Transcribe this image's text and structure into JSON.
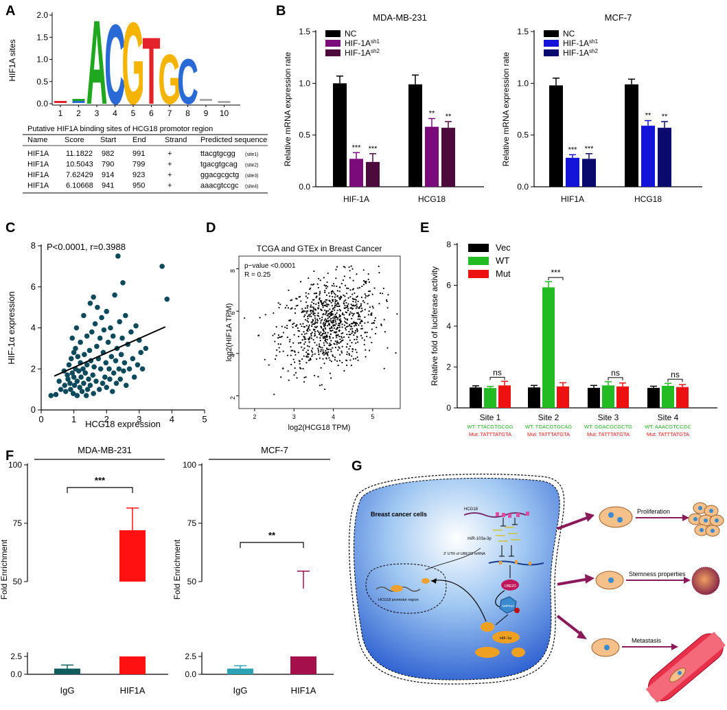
{
  "panel_labels": [
    "A",
    "B",
    "C",
    "D",
    "E",
    "F",
    "G"
  ],
  "chart_data": [
    {
      "id": "A_logo",
      "type": "sequence-logo",
      "ylabel": "HIF1A sites",
      "yticks": [
        "0.0",
        "0.5",
        "1.0",
        "1.5",
        "2.0"
      ],
      "ylim": [
        0,
        2.0
      ],
      "positions": [
        "1",
        "2",
        "3",
        "4",
        "5",
        "6",
        "7",
        "8",
        "9",
        "10"
      ],
      "letters": [
        {
          "pos": 3,
          "char": "A",
          "bits": 1.95
        },
        {
          "pos": 4,
          "char": "C",
          "bits": 1.85
        },
        {
          "pos": 5,
          "char": "G",
          "bits": 1.9
        },
        {
          "pos": 6,
          "char": "T",
          "bits": 1.55
        },
        {
          "pos": 7,
          "char": "G",
          "bits": 1.15
        },
        {
          "pos": 8,
          "char": "C",
          "bits": 1.05
        }
      ]
    },
    {
      "id": "A_table",
      "type": "table",
      "title": "Putative HIF1A binding sites of HCG18 promotor region",
      "columns": [
        "Name",
        "Score",
        "Start",
        "End",
        "Strand",
        "Predicted sequence"
      ],
      "rows": [
        [
          "HIF1A",
          "11.1822",
          "982",
          "991",
          "+",
          "ttacgtgcgg",
          "(site1)"
        ],
        [
          "HIF1A",
          "10.5043",
          "790",
          "799",
          "+",
          "tgacgtgcag",
          "(site2)"
        ],
        [
          "HIF1A",
          "7.62429",
          "914",
          "923",
          "+",
          "ggacgcgctg",
          "(site3)"
        ],
        [
          "HIF1A",
          "6.10668",
          "941",
          "950",
          "+",
          "aaacgtccgc",
          "(site4)"
        ]
      ]
    },
    {
      "id": "B1",
      "type": "bar",
      "title": "MDA-MB-231",
      "ylabel": "Relative mRNA expression rate",
      "ylim": [
        0,
        1.5
      ],
      "yticks": [
        "0.0",
        "0.5",
        "1.0",
        "1.5"
      ],
      "categories": [
        "HIF-1A",
        "HCG18"
      ],
      "series": [
        {
          "name": "NC",
          "color": "#000000",
          "values": [
            1.0,
            0.99
          ],
          "errors": [
            0.07,
            0.09
          ]
        },
        {
          "name": "HIF-1A",
          "sup": "sh1",
          "color": "#7b0a7b",
          "values": [
            0.27,
            0.58
          ],
          "errors": [
            0.06,
            0.08
          ]
        },
        {
          "name": "HIF-1A",
          "sup": "sh2",
          "color": "#4d0a3d",
          "values": [
            0.24,
            0.57
          ],
          "errors": [
            0.08,
            0.06
          ]
        }
      ],
      "significance": [
        [
          "",
          "***",
          "***"
        ],
        [
          "",
          "**",
          "**"
        ]
      ]
    },
    {
      "id": "B2",
      "type": "bar",
      "title": "MCF-7",
      "ylabel": "Relative mRNA expression rate",
      "ylim": [
        0,
        1.5
      ],
      "yticks": [
        "0.0",
        "0.5",
        "1.0",
        "1.5"
      ],
      "categories": [
        "HIF1A",
        "HCG18"
      ],
      "series": [
        {
          "name": "NC",
          "color": "#000000",
          "values": [
            0.98,
            0.99
          ],
          "errors": [
            0.07,
            0.05
          ]
        },
        {
          "name": "HIF-1A",
          "sup": "sh1",
          "color": "#1414d8",
          "values": [
            0.28,
            0.59
          ],
          "errors": [
            0.03,
            0.05
          ]
        },
        {
          "name": "HIF-1A",
          "sup": "sh2",
          "color": "#0a0a6e",
          "values": [
            0.27,
            0.57
          ],
          "errors": [
            0.05,
            0.06
          ]
        }
      ],
      "significance": [
        [
          "",
          "***",
          "***"
        ],
        [
          "",
          "**",
          "**"
        ]
      ]
    },
    {
      "id": "C",
      "type": "scatter",
      "annotation": "P<0.0001, r=0.3988",
      "xlabel": "HCG18 expression",
      "ylabel": "HIF-1α expression",
      "xlim": [
        0,
        5
      ],
      "ylim": [
        0,
        8
      ],
      "xticks": [
        "0",
        "1",
        "2",
        "3",
        "4",
        "5"
      ],
      "yticks": [
        "0",
        "2",
        "4",
        "6",
        "8"
      ],
      "color": "#0d4a5c",
      "fit": [
        [
          0.4,
          1.65
        ],
        [
          3.8,
          4.05
        ]
      ],
      "points": [
        [
          0.3,
          0.7
        ],
        [
          0.45,
          0.75
        ],
        [
          0.55,
          1.4
        ],
        [
          0.6,
          1.0
        ],
        [
          0.7,
          1.9
        ],
        [
          0.72,
          1.2
        ],
        [
          0.75,
          0.9
        ],
        [
          0.8,
          1.7
        ],
        [
          0.82,
          1.5
        ],
        [
          0.85,
          2.2
        ],
        [
          0.88,
          1.3
        ],
        [
          0.9,
          1.0
        ],
        [
          0.92,
          2.5
        ],
        [
          0.95,
          1.8
        ],
        [
          0.95,
          3.5
        ],
        [
          0.98,
          0.8
        ],
        [
          1.0,
          2.8
        ],
        [
          1.0,
          1.6
        ],
        [
          1.02,
          1.2
        ],
        [
          1.05,
          3.0
        ],
        [
          1.05,
          2.0
        ],
        [
          1.08,
          4.0
        ],
        [
          1.1,
          1.4
        ],
        [
          1.1,
          0.7
        ],
        [
          1.12,
          2.6
        ],
        [
          1.15,
          1.9
        ],
        [
          1.18,
          1.1
        ],
        [
          1.2,
          3.3
        ],
        [
          1.2,
          2.3
        ],
        [
          1.22,
          1.6
        ],
        [
          1.25,
          0.9
        ],
        [
          1.28,
          2.0
        ],
        [
          1.3,
          4.6
        ],
        [
          1.3,
          1.3
        ],
        [
          1.32,
          2.7
        ],
        [
          1.35,
          1.8
        ],
        [
          1.38,
          0.7
        ],
        [
          1.4,
          3.6
        ],
        [
          1.4,
          2.2
        ],
        [
          1.42,
          1.0
        ],
        [
          1.45,
          1.5
        ],
        [
          1.48,
          2.9
        ],
        [
          1.5,
          5.2
        ],
        [
          1.5,
          1.2
        ],
        [
          1.52,
          2.4
        ],
        [
          1.55,
          3.8
        ],
        [
          1.58,
          1.7
        ],
        [
          1.6,
          5.5
        ],
        [
          1.6,
          0.8
        ],
        [
          1.62,
          2.1
        ],
        [
          1.65,
          4.2
        ],
        [
          1.68,
          1.4
        ],
        [
          1.7,
          3.1
        ],
        [
          1.72,
          5.0
        ],
        [
          1.75,
          2.5
        ],
        [
          1.78,
          1.0
        ],
        [
          1.8,
          3.5
        ],
        [
          1.82,
          2.0
        ],
        [
          1.85,
          4.5
        ],
        [
          1.88,
          1.3
        ],
        [
          1.9,
          2.8
        ],
        [
          1.92,
          3.9
        ],
        [
          1.95,
          1.6
        ],
        [
          1.98,
          2.3
        ],
        [
          2.0,
          4.8
        ],
        [
          2.0,
          1.1
        ],
        [
          2.05,
          3.3
        ],
        [
          2.08,
          2.0
        ],
        [
          2.1,
          1.5
        ],
        [
          2.12,
          4.0
        ],
        [
          2.15,
          2.6
        ],
        [
          2.18,
          0.9
        ],
        [
          2.2,
          3.6
        ],
        [
          2.22,
          1.8
        ],
        [
          2.25,
          5.6
        ],
        [
          2.28,
          2.4
        ],
        [
          2.3,
          1.3
        ],
        [
          2.32,
          3.0
        ],
        [
          2.35,
          7.5
        ],
        [
          2.38,
          2.0
        ],
        [
          2.4,
          4.3
        ],
        [
          2.42,
          1.5
        ],
        [
          2.45,
          2.7
        ],
        [
          2.48,
          3.5
        ],
        [
          2.5,
          6.2
        ],
        [
          2.52,
          1.9
        ],
        [
          2.55,
          2.3
        ],
        [
          2.58,
          4.6
        ],
        [
          2.6,
          1.2
        ],
        [
          2.65,
          3.2
        ],
        [
          2.7,
          2.0
        ],
        [
          2.75,
          3.8
        ],
        [
          2.8,
          2.5
        ],
        [
          2.85,
          1.6
        ],
        [
          2.9,
          4.1
        ],
        [
          2.95,
          2.2
        ],
        [
          3.0,
          3.4
        ],
        [
          3.05,
          2.8
        ],
        [
          3.1,
          2.0
        ],
        [
          3.2,
          3.0
        ],
        [
          3.7,
          7.0
        ],
        [
          3.85,
          5.4
        ]
      ]
    },
    {
      "id": "D",
      "type": "scatter",
      "title": "TCGA and GTEx in Breast Cancer",
      "annotation": [
        "p−value <0.0001",
        "R = 0.25"
      ],
      "xlabel": "log2(HCG18 TPM)",
      "ylabel": "log2(HIF1A TPM)",
      "xlim": [
        1.6,
        5.7
      ],
      "ylim": [
        1.4,
        8.6
      ],
      "xticks": [
        "2",
        "3",
        "4",
        "5"
      ],
      "yticks": [
        "2",
        "4",
        "6",
        "8"
      ],
      "n_points": 900,
      "x_mean": 3.9,
      "x_sd": 0.62,
      "y_mean": 5.4,
      "y_sd": 1.1,
      "correlation": 0.25
    },
    {
      "id": "E",
      "type": "bar",
      "ylabel": "Relative fold of luciferase activity",
      "ylim": [
        0,
        8
      ],
      "yticks": [
        "0",
        "2",
        "4",
        "6",
        "8"
      ],
      "categories": [
        "Site 1",
        "Site 2",
        "Site 3",
        "Site 4"
      ],
      "wt_labels": [
        "WT: TTACGTGCGG",
        "WT: TGACGTGCAG",
        "WT: GGACGCGCTG",
        "WT: AAACGTCCGC"
      ],
      "mut_labels": [
        "Mut: TATTTATGTA",
        "Mut: TATTTATGTA",
        "Mut: TATTTATGTA",
        "Mut: TATTTATGTA"
      ],
      "series": [
        {
          "name": "Vec",
          "color": "#000000",
          "values": [
            1.0,
            1.0,
            0.98,
            0.98
          ],
          "errors": [
            0.08,
            0.1,
            0.12,
            0.08
          ]
        },
        {
          "name": "WT",
          "color": "#22bb22",
          "values": [
            0.97,
            5.9,
            1.1,
            1.08
          ],
          "errors": [
            0.08,
            0.28,
            0.18,
            0.12
          ]
        },
        {
          "name": "Mut",
          "color": "#ee1111",
          "values": [
            1.1,
            1.05,
            1.05,
            1.02
          ],
          "errors": [
            0.2,
            0.18,
            0.17,
            0.12
          ]
        }
      ],
      "significance": [
        "ns",
        "***",
        "ns",
        "ns"
      ]
    },
    {
      "id": "F1",
      "type": "bar",
      "title": "MDA-MB-231",
      "ylabel": "Fold Enrichment",
      "broken_axis": true,
      "yticks_low": [
        "0.0",
        "2.5"
      ],
      "yticks_high": [
        "50",
        "75",
        "100"
      ],
      "ylim_low": [
        0,
        2.5
      ],
      "ylim_high": [
        50,
        100
      ],
      "categories": [
        "IgG",
        "HIF1A"
      ],
      "values": [
        0.8,
        72
      ],
      "errors": [
        0.5,
        9.5
      ],
      "colors": [
        "#0f5d5d",
        "#ff1111"
      ],
      "significance": "***"
    },
    {
      "id": "F2",
      "type": "bar",
      "title": "MCF-7",
      "ylabel": "Fold Enrichment",
      "broken_axis": true,
      "yticks_low": [
        "0.0",
        "2.5"
      ],
      "yticks_high": [
        "50",
        "75",
        "100"
      ],
      "ylim_low": [
        0,
        2.5
      ],
      "ylim_high": [
        50,
        100
      ],
      "categories": [
        "IgG",
        "HIF1A"
      ],
      "values": [
        0.8,
        47
      ],
      "errors": [
        0.4,
        7.5
      ],
      "colors": [
        "#2aa4b4",
        "#a40f4c"
      ],
      "significance": "**"
    }
  ],
  "schematic": {
    "cell_label": "Breast cancer cells",
    "labels": {
      "hcg18": "HCG18",
      "mir": "miR-103a-3p",
      "utr": "3' UTR of UBE2O mRNA",
      "promotor": "HCG18 promotor region",
      "ube2o": "UBE2O",
      "ampk": "AMPKα2",
      "hif": "HIF-1α",
      "hif_small": "HIF-1α"
    },
    "outcomes": [
      "Proliferation",
      "Stemness properties",
      "Metastasis"
    ]
  }
}
